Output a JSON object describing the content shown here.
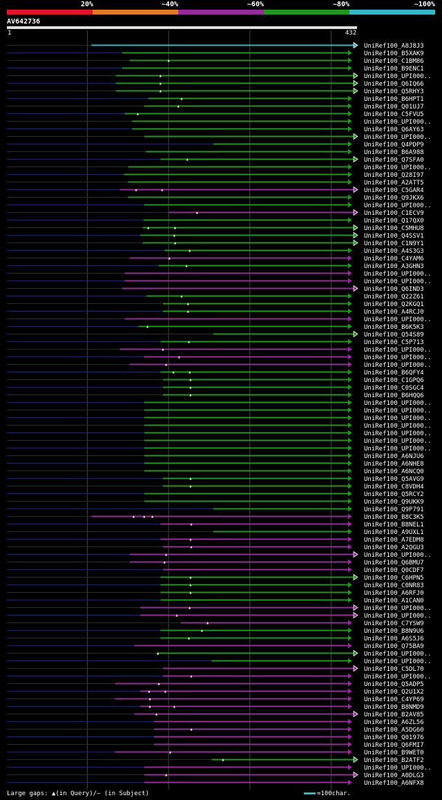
{
  "header": {
    "pct_labels": [
      "20%",
      "~40%",
      "~60%",
      "~80%",
      "~100%"
    ],
    "scale_colors": [
      "#e8102a",
      "#e37a1b",
      "#982b9b",
      "#1e9a1a",
      "#2fb9c9"
    ]
  },
  "query": {
    "name": "AV642736",
    "start": "1",
    "end": "432",
    "length": 432
  },
  "colors": {
    "cyan": "#2fb9c9",
    "green": "#1e9a1a",
    "magenta": "#982b9b",
    "grid": "#444444",
    "pre": "#1a2a60"
  },
  "legend": {
    "text": "Large gaps: ▲(in Query)/— (in Subject)",
    "scale": "=100char."
  },
  "chart_data": {
    "type": "alignment",
    "xlim": [
      1,
      432
    ],
    "grid_x": [
      100,
      200,
      300,
      400
    ],
    "hits": [
      {
        "label": "UniRef100_A8J8J3",
        "start": 105,
        "end": 432,
        "color": "cyan",
        "gaps": [],
        "arrow": "hollow"
      },
      {
        "label": "UniRef100_B5XAK9",
        "start": 143,
        "end": 425,
        "color": "green",
        "gaps": [],
        "arrow": "filled"
      },
      {
        "label": "UniRef100_C1BM86",
        "start": 152,
        "end": 425,
        "color": "green",
        "gaps": [
          200
        ],
        "arrow": "filled"
      },
      {
        "label": "UniRef100_B9ENC1",
        "start": 143,
        "end": 425,
        "color": "green",
        "gaps": [],
        "arrow": "filled"
      },
      {
        "label": "UniRef100_UPI000..",
        "start": 135,
        "end": 432,
        "color": "green",
        "gaps": [
          190
        ],
        "arrow": "hollow"
      },
      {
        "label": "UniRef100_Q6IQ66",
        "start": 135,
        "end": 432,
        "color": "green",
        "gaps": [
          190
        ],
        "arrow": "hollow"
      },
      {
        "label": "UniRef100_Q5RHY3",
        "start": 135,
        "end": 432,
        "color": "green",
        "gaps": [
          190
        ],
        "arrow": "hollow"
      },
      {
        "label": "UniRef100_B6HPT1",
        "start": 175,
        "end": 425,
        "color": "green",
        "gaps": [
          216
        ],
        "arrow": "filled"
      },
      {
        "label": "UniRef100_Q01UJ7",
        "start": 170,
        "end": 425,
        "color": "green",
        "gaps": [
          212
        ],
        "arrow": "filled"
      },
      {
        "label": "UniRef100_C5FVU5",
        "start": 146,
        "end": 425,
        "color": "green",
        "gaps": [
          162
        ],
        "arrow": "filled"
      },
      {
        "label": "UniRef100_UPI000..",
        "start": 155,
        "end": 425,
        "color": "green",
        "gaps": [],
        "arrow": "filled"
      },
      {
        "label": "UniRef100_Q6AY63",
        "start": 155,
        "end": 425,
        "color": "green",
        "gaps": [],
        "arrow": "filled"
      },
      {
        "label": "UniRef100_UPI000..",
        "start": 170,
        "end": 432,
        "color": "green",
        "gaps": [],
        "arrow": "hollow"
      },
      {
        "label": "UniRef100_Q4PDP9",
        "start": 255,
        "end": 425,
        "color": "green",
        "gaps": [],
        "arrow": "filled"
      },
      {
        "label": "UniRef100_B6A988",
        "start": 172,
        "end": 425,
        "color": "green",
        "gaps": [],
        "arrow": "filled"
      },
      {
        "label": "UniRef100_Q7SFA0",
        "start": 190,
        "end": 432,
        "color": "green",
        "gaps": [
          223
        ],
        "arrow": "hollow"
      },
      {
        "label": "UniRef100_UPI000..",
        "start": 150,
        "end": 425,
        "color": "green",
        "gaps": [],
        "arrow": "filled"
      },
      {
        "label": "UniRef100_Q28I97",
        "start": 145,
        "end": 425,
        "color": "green",
        "gaps": [],
        "arrow": "filled"
      },
      {
        "label": "UniRef100_A2ATT5",
        "start": 150,
        "end": 425,
        "color": "green",
        "gaps": [],
        "arrow": "filled"
      },
      {
        "label": "UniRef100_C5GAR4",
        "start": 140,
        "end": 432,
        "color": "magenta",
        "gaps": [
          160,
          192
        ],
        "arrow": "hollow"
      },
      {
        "label": "UniRef100_Q9JKX6",
        "start": 150,
        "end": 425,
        "color": "green",
        "gaps": [],
        "arrow": "filled"
      },
      {
        "label": "UniRef100_UPI000..",
        "start": 170,
        "end": 425,
        "color": "green",
        "gaps": [],
        "arrow": "filled"
      },
      {
        "label": "UniRef100_C1ECV9",
        "start": 200,
        "end": 432,
        "color": "magenta",
        "gaps": [
          235
        ],
        "arrow": "hollow"
      },
      {
        "label": "UniRef100_Q17QX0",
        "start": 169,
        "end": 425,
        "color": "green",
        "gaps": [],
        "arrow": "filled"
      },
      {
        "label": "UniRef100_C5MHU8",
        "start": 168,
        "end": 432,
        "color": "green",
        "gaps": [
          175,
          208
        ],
        "arrow": "hollow"
      },
      {
        "label": "UniRef100_Q4SSV1",
        "start": 165,
        "end": 432,
        "color": "green",
        "gaps": [
          207
        ],
        "arrow": "hollow"
      },
      {
        "label": "UniRef100_C1N9Y1",
        "start": 168,
        "end": 432,
        "color": "green",
        "gaps": [
          208
        ],
        "arrow": "hollow"
      },
      {
        "label": "UniRef100_A4S3G3",
        "start": 195,
        "end": 425,
        "color": "green",
        "gaps": [
          226
        ],
        "arrow": "filled"
      },
      {
        "label": "UniRef100_C4YAM6",
        "start": 152,
        "end": 425,
        "color": "magenta",
        "gaps": [
          201
        ],
        "arrow": "filled"
      },
      {
        "label": "UniRef100_A3GHN3",
        "start": 188,
        "end": 425,
        "color": "green",
        "gaps": [
          222
        ],
        "arrow": "filled"
      },
      {
        "label": "UniRef100_UPI000..",
        "start": 146,
        "end": 425,
        "color": "magenta",
        "gaps": [],
        "arrow": "filled"
      },
      {
        "label": "UniRef100_UPI000..",
        "start": 146,
        "end": 425,
        "color": "magenta",
        "gaps": [],
        "arrow": "filled"
      },
      {
        "label": "UniRef100_Q6IND3",
        "start": 143,
        "end": 432,
        "color": "magenta",
        "gaps": [],
        "arrow": "hollow"
      },
      {
        "label": "UniRef100_Q22Z61",
        "start": 173,
        "end": 425,
        "color": "green",
        "gaps": [
          216
        ],
        "arrow": "filled"
      },
      {
        "label": "UniRef100_Q2KGQ1",
        "start": 193,
        "end": 425,
        "color": "green",
        "gaps": [
          224
        ],
        "arrow": "filled"
      },
      {
        "label": "UniRef100_A4RCJ0",
        "start": 193,
        "end": 425,
        "color": "green",
        "gaps": [
          224
        ],
        "arrow": "filled"
      },
      {
        "label": "UniRef100_UPI000..",
        "start": 146,
        "end": 425,
        "color": "magenta",
        "gaps": [],
        "arrow": "filled"
      },
      {
        "label": "UniRef100_B6K5K3",
        "start": 163,
        "end": 425,
        "color": "green",
        "gaps": [
          174
        ],
        "arrow": "filled"
      },
      {
        "label": "UniRef100_Q54S89",
        "start": 255,
        "end": 432,
        "color": "green",
        "gaps": [],
        "arrow": "hollow"
      },
      {
        "label": "UniRef100_C5P713",
        "start": 190,
        "end": 425,
        "color": "green",
        "gaps": [
          225
        ],
        "arrow": "filled"
      },
      {
        "label": "UniRef100_UPI000..",
        "start": 140,
        "end": 425,
        "color": "magenta",
        "gaps": [
          193
        ],
        "arrow": "filled"
      },
      {
        "label": "UniRef100_UPI000..",
        "start": 170,
        "end": 425,
        "color": "magenta",
        "gaps": [
          213
        ],
        "arrow": "filled"
      },
      {
        "label": "UniRef100_UPI000..",
        "start": 152,
        "end": 425,
        "color": "magenta",
        "gaps": [
          197
        ],
        "arrow": "filled"
      },
      {
        "label": "UniRef100_B6QFY4",
        "start": 190,
        "end": 425,
        "color": "green",
        "gaps": [
          206,
          226
        ],
        "arrow": "filled"
      },
      {
        "label": "UniRef100_C1GPQ6",
        "start": 193,
        "end": 425,
        "color": "green",
        "gaps": [
          227
        ],
        "arrow": "filled"
      },
      {
        "label": "UniRef100_C0SGC4",
        "start": 193,
        "end": 425,
        "color": "green",
        "gaps": [
          227
        ],
        "arrow": "filled"
      },
      {
        "label": "UniRef100_B6HQQ6",
        "start": 193,
        "end": 425,
        "color": "green",
        "gaps": [
          227
        ],
        "arrow": "filled"
      },
      {
        "label": "UniRef100_UPI000..",
        "start": 170,
        "end": 425,
        "color": "green",
        "gaps": [],
        "arrow": "filled"
      },
      {
        "label": "UniRef100_UPI000..",
        "start": 170,
        "end": 425,
        "color": "green",
        "gaps": [],
        "arrow": "filled"
      },
      {
        "label": "UniRef100_UPI000..",
        "start": 170,
        "end": 425,
        "color": "green",
        "gaps": [],
        "arrow": "filled"
      },
      {
        "label": "UniRef100_UPI000..",
        "start": 170,
        "end": 425,
        "color": "green",
        "gaps": [],
        "arrow": "filled"
      },
      {
        "label": "UniRef100_UPI000..",
        "start": 170,
        "end": 425,
        "color": "green",
        "gaps": [],
        "arrow": "filled"
      },
      {
        "label": "UniRef100_UPI000..",
        "start": 170,
        "end": 425,
        "color": "green",
        "gaps": [],
        "arrow": "filled"
      },
      {
        "label": "UniRef100_UPI000..",
        "start": 170,
        "end": 425,
        "color": "green",
        "gaps": [],
        "arrow": "filled"
      },
      {
        "label": "UniRef100_A6NJU6",
        "start": 170,
        "end": 425,
        "color": "green",
        "gaps": [],
        "arrow": "filled"
      },
      {
        "label": "UniRef100_A6NHE8",
        "start": 170,
        "end": 425,
        "color": "green",
        "gaps": [],
        "arrow": "filled"
      },
      {
        "label": "UniRef100_A6NCQ0",
        "start": 170,
        "end": 425,
        "color": "green",
        "gaps": [],
        "arrow": "filled"
      },
      {
        "label": "UniRef100_Q5AVG9",
        "start": 193,
        "end": 425,
        "color": "green",
        "gaps": [
          227
        ],
        "arrow": "filled"
      },
      {
        "label": "UniRef100_C8VDH4",
        "start": 193,
        "end": 425,
        "color": "green",
        "gaps": [
          227
        ],
        "arrow": "filled"
      },
      {
        "label": "UniRef100_Q5RCY2",
        "start": 170,
        "end": 425,
        "color": "green",
        "gaps": [],
        "arrow": "filled"
      },
      {
        "label": "UniRef100_Q9UKK9",
        "start": 170,
        "end": 425,
        "color": "green",
        "gaps": [],
        "arrow": "filled"
      },
      {
        "label": "UniRef100_Q9P791",
        "start": 255,
        "end": 425,
        "color": "green",
        "gaps": [],
        "arrow": "filled"
      },
      {
        "label": "UniRef100_B8C3K5",
        "start": 105,
        "end": 425,
        "color": "magenta",
        "gaps": [
          157,
          170,
          180
        ],
        "arrow": "filled"
      },
      {
        "label": "UniRef100_B8NEL1",
        "start": 190,
        "end": 425,
        "color": "magenta",
        "gaps": [
          228
        ],
        "arrow": "filled"
      },
      {
        "label": "UniRef100_A9UXL1",
        "start": 255,
        "end": 425,
        "color": "green",
        "gaps": [],
        "arrow": "filled"
      },
      {
        "label": "UniRef100_A7EDM8",
        "start": 190,
        "end": 425,
        "color": "magenta",
        "gaps": [
          227
        ],
        "arrow": "filled"
      },
      {
        "label": "UniRef100_A2QGU3",
        "start": 193,
        "end": 425,
        "color": "magenta",
        "gaps": [
          228
        ],
        "arrow": "filled"
      },
      {
        "label": "UniRef100_UPI000..",
        "start": 152,
        "end": 432,
        "color": "magenta",
        "gaps": [
          197
        ],
        "arrow": "hollow"
      },
      {
        "label": "UniRef100_Q6BMU7",
        "start": 152,
        "end": 425,
        "color": "magenta",
        "gaps": [
          195
        ],
        "arrow": "filled"
      },
      {
        "label": "UniRef100_Q0CDF7",
        "start": 193,
        "end": 425,
        "color": "magenta",
        "gaps": [],
        "arrow": "filled"
      },
      {
        "label": "UniRef100_C6HPN5",
        "start": 190,
        "end": 432,
        "color": "green",
        "gaps": [
          227
        ],
        "arrow": "hollow"
      },
      {
        "label": "UniRef100_C0NR83",
        "start": 190,
        "end": 425,
        "color": "green",
        "gaps": [
          227
        ],
        "arrow": "filled"
      },
      {
        "label": "UniRef100_A6RFJ0",
        "start": 190,
        "end": 425,
        "color": "green",
        "gaps": [
          227
        ],
        "arrow": "filled"
      },
      {
        "label": "UniRef100_A1CAN0",
        "start": 190,
        "end": 425,
        "color": "green",
        "gaps": [],
        "arrow": "filled"
      },
      {
        "label": "UniRef100_UPI000..",
        "start": 165,
        "end": 432,
        "color": "magenta",
        "gaps": [
          226
        ],
        "arrow": "hollow"
      },
      {
        "label": "UniRef100_UPI000..",
        "start": 165,
        "end": 432,
        "color": "magenta",
        "gaps": [
          210
        ],
        "arrow": "hollow"
      },
      {
        "label": "UniRef100_C7YSW9",
        "start": 215,
        "end": 425,
        "color": "magenta",
        "gaps": [
          248
        ],
        "arrow": "filled"
      },
      {
        "label": "UniRef100_B8N9U6",
        "start": 190,
        "end": 425,
        "color": "green",
        "gaps": [
          241
        ],
        "arrow": "filled"
      },
      {
        "label": "UniRef100_A6S5J6",
        "start": 190,
        "end": 425,
        "color": "green",
        "gaps": [
          225
        ],
        "arrow": "filled"
      },
      {
        "label": "UniRef100_Q75BA9",
        "start": 158,
        "end": 425,
        "color": "magenta",
        "gaps": [],
        "arrow": "filled"
      },
      {
        "label": "UniRef100_UPI000..",
        "start": 185,
        "end": 432,
        "color": "green",
        "gaps": [
          187
        ],
        "arrow": "hollow"
      },
      {
        "label": "UniRef100_UPI000..",
        "start": 253,
        "end": 425,
        "color": "green",
        "gaps": [],
        "arrow": "filled"
      },
      {
        "label": "UniRef100_C5DL70",
        "start": 193,
        "end": 432,
        "color": "magenta",
        "gaps": [],
        "arrow": "hollow"
      },
      {
        "label": "UniRef100_UPI000..",
        "start": 193,
        "end": 425,
        "color": "magenta",
        "gaps": [
          228
        ],
        "arrow": "filled"
      },
      {
        "label": "UniRef100_Q5ADP5",
        "start": 134,
        "end": 425,
        "color": "magenta",
        "gaps": [
          188
        ],
        "arrow": "filled"
      },
      {
        "label": "UniRef100_Q2U1X2",
        "start": 165,
        "end": 425,
        "color": "magenta",
        "gaps": [
          176,
          196
        ],
        "arrow": "filled"
      },
      {
        "label": "UniRef100_C4YP69",
        "start": 134,
        "end": 425,
        "color": "magenta",
        "gaps": [
          177
        ],
        "arrow": "filled"
      },
      {
        "label": "UniRef100_B8NMD9",
        "start": 165,
        "end": 425,
        "color": "magenta",
        "gaps": [
          177,
          207
        ],
        "arrow": "filled"
      },
      {
        "label": "UniRef100_B2AV85",
        "start": 158,
        "end": 432,
        "color": "magenta",
        "gaps": [
          185
        ],
        "arrow": "hollow"
      },
      {
        "label": "UniRef100_A6ZL56",
        "start": 182,
        "end": 425,
        "color": "magenta",
        "gaps": [],
        "arrow": "filled"
      },
      {
        "label": "UniRef100_A5DG60",
        "start": 182,
        "end": 425,
        "color": "magenta",
        "gaps": [
          228
        ],
        "arrow": "filled"
      },
      {
        "label": "UniRef100_Q01976",
        "start": 182,
        "end": 425,
        "color": "magenta",
        "gaps": [],
        "arrow": "filled"
      },
      {
        "label": "UniRef100_Q6FMI7",
        "start": 182,
        "end": 425,
        "color": "magenta",
        "gaps": [],
        "arrow": "filled"
      },
      {
        "label": "UniRef100_B9WET0",
        "start": 134,
        "end": 425,
        "color": "magenta",
        "gaps": [
          202
        ],
        "arrow": "filled"
      },
      {
        "label": "UniRef100_B2ATF2",
        "start": 253,
        "end": 432,
        "color": "green",
        "gaps": [
          267
        ],
        "arrow": "hollow"
      },
      {
        "label": "UniRef100_UPI000..",
        "start": 170,
        "end": 425,
        "color": "magenta",
        "gaps": [],
        "arrow": "filled"
      },
      {
        "label": "UniRef100_A0DLG3",
        "start": 170,
        "end": 432,
        "color": "magenta",
        "gaps": [
          197
        ],
        "arrow": "hollow"
      },
      {
        "label": "UniRef100_A6NFX8",
        "start": 170,
        "end": 425,
        "color": "magenta",
        "gaps": [],
        "arrow": "filled"
      }
    ]
  }
}
